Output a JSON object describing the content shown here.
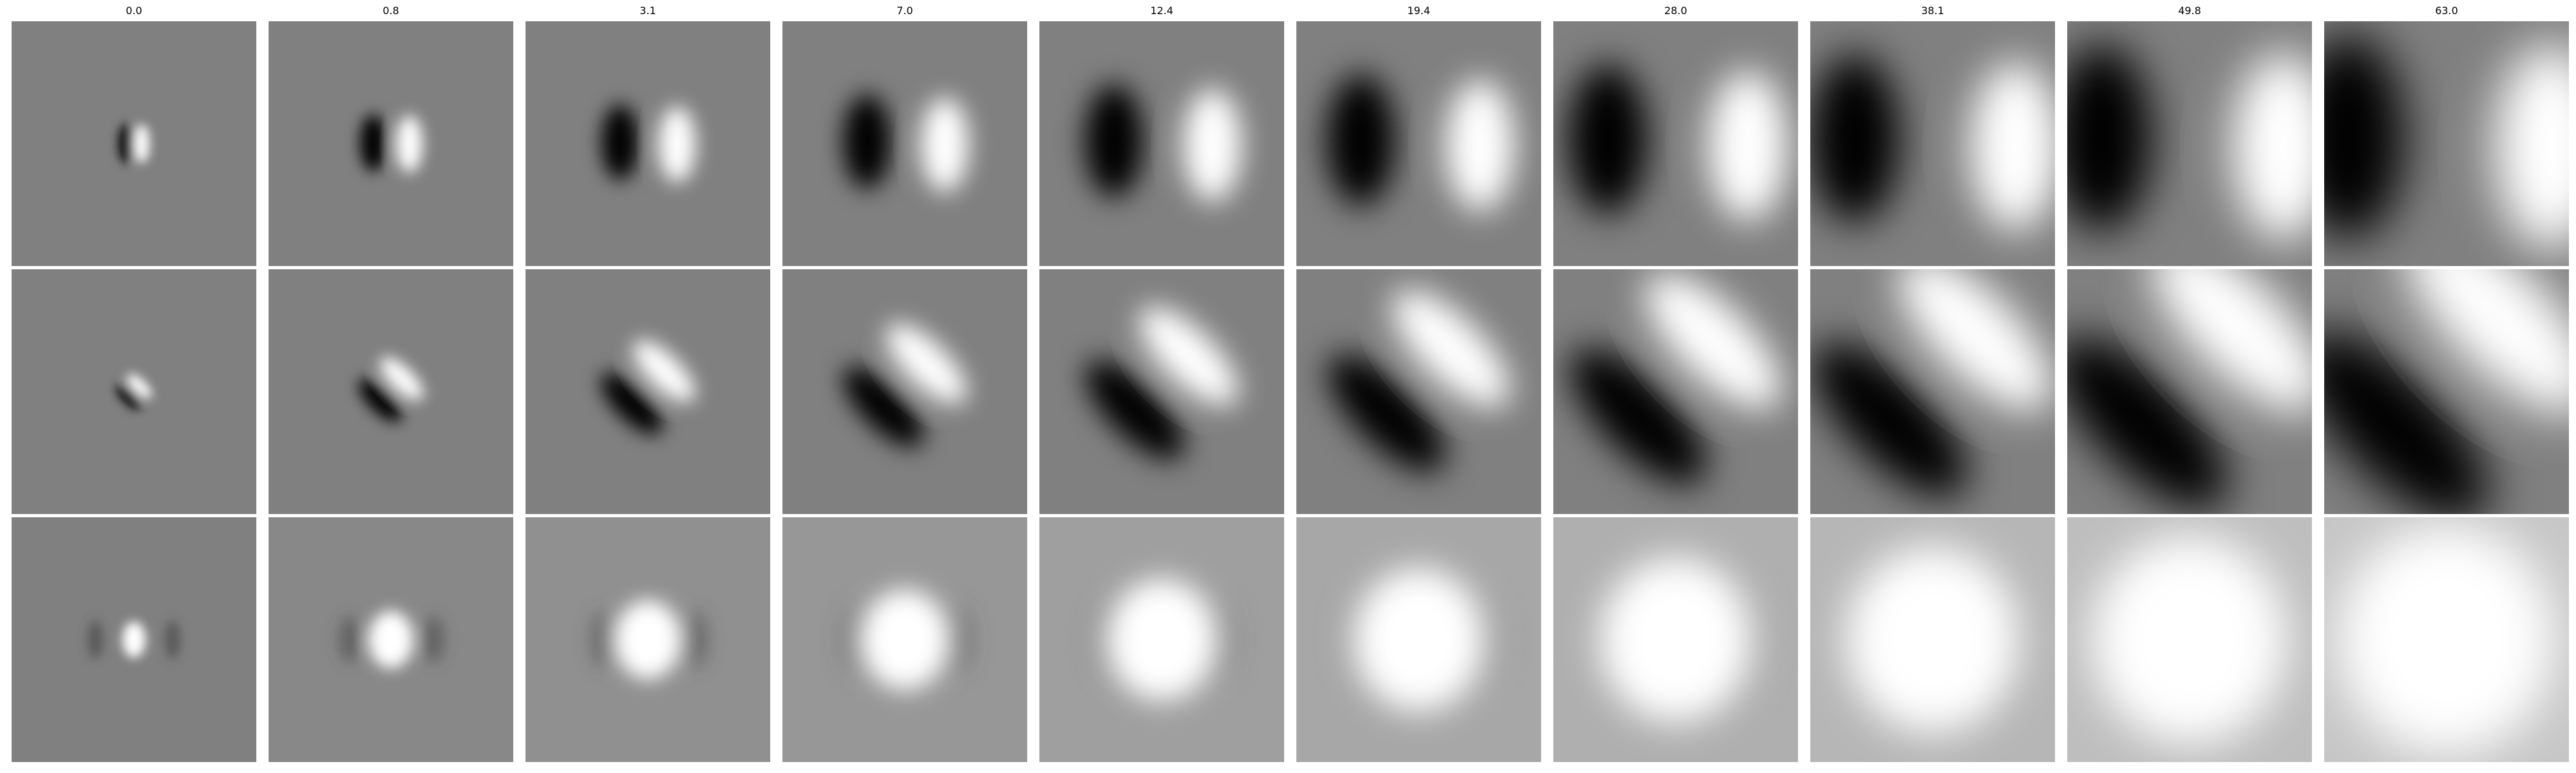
{
  "figure": {
    "column_titles": [
      "0.0",
      "0.8",
      "3.1",
      "7.0",
      "12.4",
      "19.4",
      "28.0",
      "38.1",
      "49.8",
      "63.0"
    ],
    "rows": 3,
    "background_gray": "#808080",
    "palette": {
      "dark": "#000000",
      "light": "#ffffff"
    }
  }
}
